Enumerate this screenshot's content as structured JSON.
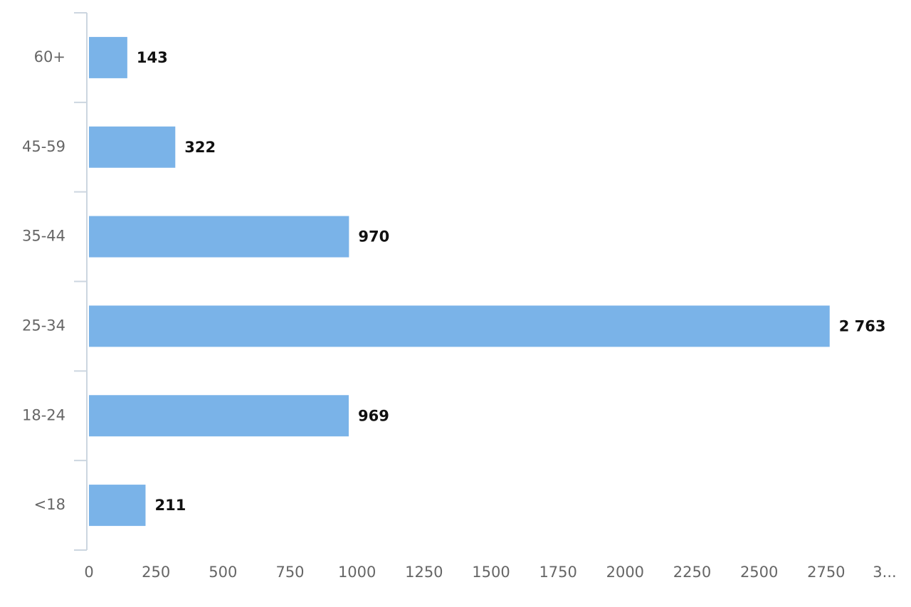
{
  "chart_data": {
    "type": "bar",
    "orientation": "horizontal",
    "categories": [
      "60+",
      "45-59",
      "35-44",
      "25-34",
      "18-24",
      "<18"
    ],
    "values": [
      143,
      322,
      970,
      2763,
      969,
      211
    ],
    "value_labels": [
      "143",
      "322",
      "970",
      "2 763",
      "969",
      "211"
    ],
    "color": "#7ab3e8",
    "xlim": [
      0,
      3000
    ],
    "xticks": [
      0,
      250,
      500,
      750,
      1000,
      1250,
      1500,
      1750,
      2000,
      2250,
      2500,
      2750,
      {
        "value": 3000,
        "label": "3..."
      }
    ],
    "grid": false
  }
}
